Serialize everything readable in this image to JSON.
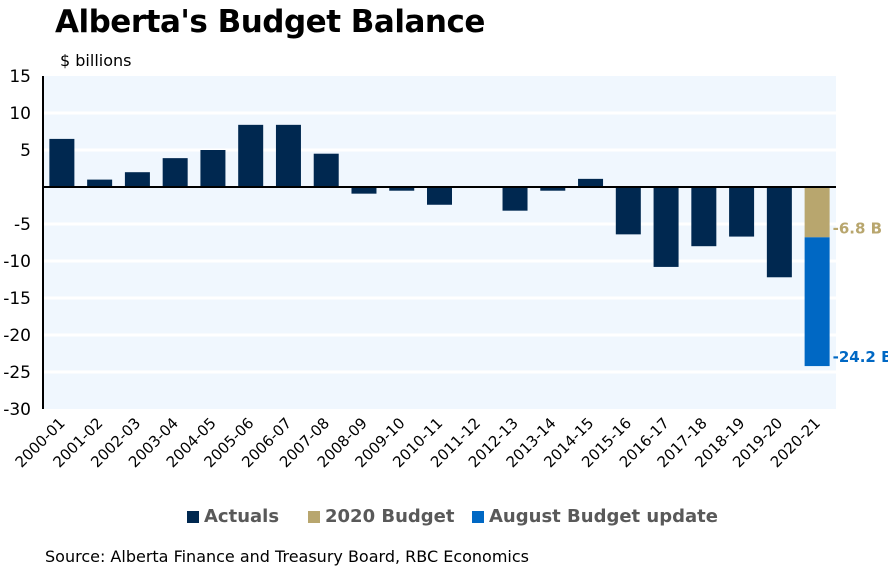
{
  "header": {
    "title": "Alberta's Budget Balance",
    "unit_label": "$ billions"
  },
  "colors": {
    "actuals": "#002850",
    "budget2020": "#B8A66E",
    "august_update": "#0068C4",
    "plot_bg": "#F0F7FE",
    "gridline": "#FFFFFF"
  },
  "chart_data": {
    "type": "bar",
    "title": "Alberta's Budget Balance",
    "ylabel": "$ billions",
    "xlabel": "",
    "ylim": [
      -30,
      15
    ],
    "yticks": [
      15,
      10,
      5,
      0,
      -5,
      -10,
      -15,
      -20,
      -25,
      -30
    ],
    "ytick_labels": [
      "15",
      "10",
      "5",
      "",
      "-5",
      "-10",
      "-15",
      "-20",
      "-25",
      "-30"
    ],
    "grid": true,
    "legend_position": "bottom",
    "categories": [
      "2000-01",
      "2001-02",
      "2002-03",
      "2003-04",
      "2004-05",
      "2005-06",
      "2006-07",
      "2007-08",
      "2008-09",
      "2009-10",
      "2010-11",
      "2011-12",
      "2012-13",
      "2013-14",
      "2014-15",
      "2015-16",
      "2016-17",
      "2017-18",
      "2018-19",
      "2019-20",
      "2020-21"
    ],
    "series": [
      {
        "name": "Actuals",
        "stacked": false,
        "values": [
          6.5,
          1.0,
          2.0,
          3.9,
          5.0,
          8.4,
          8.4,
          4.5,
          -0.9,
          -0.5,
          -2.4,
          0.0,
          -3.2,
          -0.5,
          1.1,
          -6.4,
          -10.8,
          -8.0,
          -6.7,
          -12.2,
          null
        ]
      },
      {
        "name": "2020 Budget",
        "stacked": true,
        "values": [
          null,
          null,
          null,
          null,
          null,
          null,
          null,
          null,
          null,
          null,
          null,
          null,
          null,
          null,
          null,
          null,
          null,
          null,
          null,
          null,
          -6.8
        ]
      },
      {
        "name": "August Budget update",
        "stacked": true,
        "values": [
          null,
          null,
          null,
          null,
          null,
          null,
          null,
          null,
          null,
          null,
          null,
          null,
          null,
          null,
          null,
          null,
          null,
          null,
          null,
          null,
          -17.4
        ]
      }
    ],
    "annotations": [
      {
        "text": "-6.8 B",
        "series": "2020 Budget",
        "category": "2020-21",
        "value": -6.8
      },
      {
        "text": "-24.2 B",
        "series": "August Budget update",
        "category": "2020-21",
        "value": -24.2
      }
    ]
  },
  "legend": [
    {
      "label": "Actuals",
      "key": "actuals"
    },
    {
      "label": "2020 Budget",
      "key": "budget2020"
    },
    {
      "label": "August Budget update",
      "key": "august_update"
    }
  ],
  "footer": {
    "source": "Source: Alberta Finance and Treasury Board, RBC Economics"
  }
}
